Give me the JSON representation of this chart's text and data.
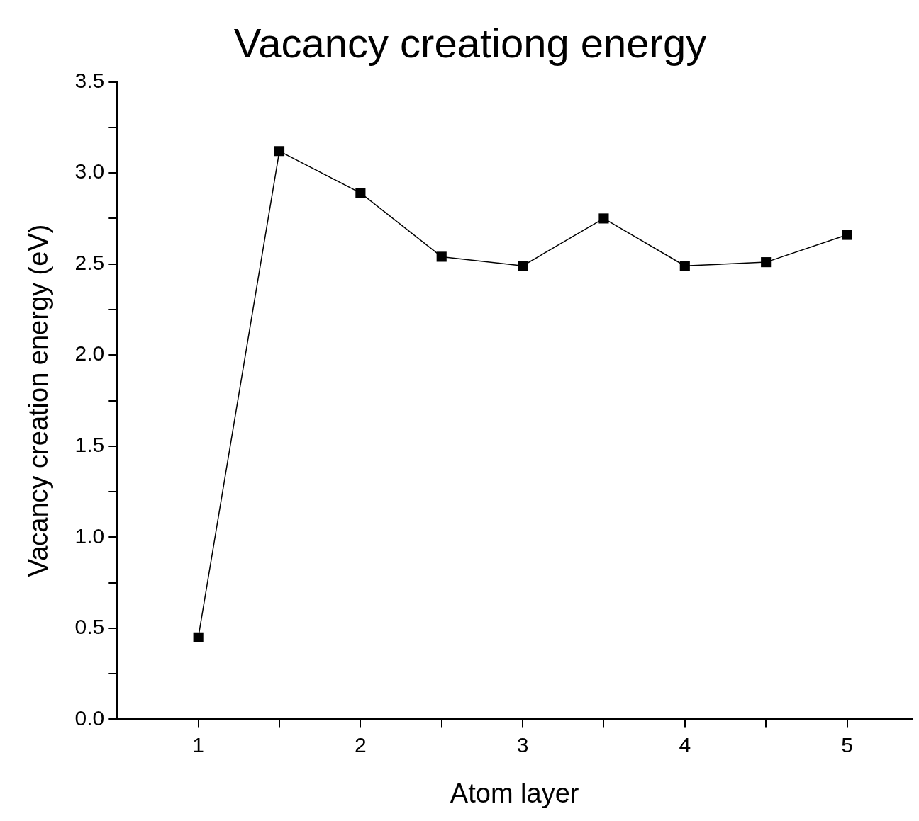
{
  "chart_data": {
    "type": "line",
    "title": "Vacancy creationg energy",
    "xlabel": "Atom layer",
    "ylabel": "Vacancy creation energy (eV)",
    "x": [
      1,
      1.5,
      2,
      2.5,
      3,
      3.5,
      4,
      4.5,
      5
    ],
    "series": [
      {
        "color": "#000000",
        "values": [
          0.45,
          3.12,
          2.89,
          2.54,
          2.49,
          2.75,
          2.49,
          2.51,
          2.66
        ]
      }
    ],
    "xlim": [
      0.5,
      5.4
    ],
    "xticks": [
      1,
      {
        "value": 1.5,
        "label": null
      },
      2,
      {
        "value": 2.5,
        "label": null
      },
      3,
      {
        "value": 3.5,
        "label": null
      },
      4,
      {
        "value": 4.5,
        "label": null
      },
      5
    ],
    "ylim": [
      0,
      3.5
    ],
    "yticks": [
      {
        "value": 0,
        "label": "0.0"
      },
      {
        "value": 0.25,
        "label": null
      },
      {
        "value": 0.5,
        "label": "0.5"
      },
      {
        "value": 0.75,
        "label": null
      },
      {
        "value": 1,
        "label": "1.0"
      },
      {
        "value": 1.25,
        "label": null
      },
      {
        "value": 1.5,
        "label": "1.5"
      },
      {
        "value": 1.75,
        "label": null
      },
      {
        "value": 2,
        "label": "2.0"
      },
      {
        "value": 2.25,
        "label": null
      },
      {
        "value": 2.5,
        "label": "2.5"
      },
      {
        "value": 2.75,
        "label": null
      },
      {
        "value": 3,
        "label": "3.0"
      },
      {
        "value": 3.25,
        "label": null
      },
      {
        "value": 3.5,
        "label": "3.5"
      }
    ],
    "marker": "square",
    "line_style": "solid",
    "grid": false,
    "legend": false
  }
}
